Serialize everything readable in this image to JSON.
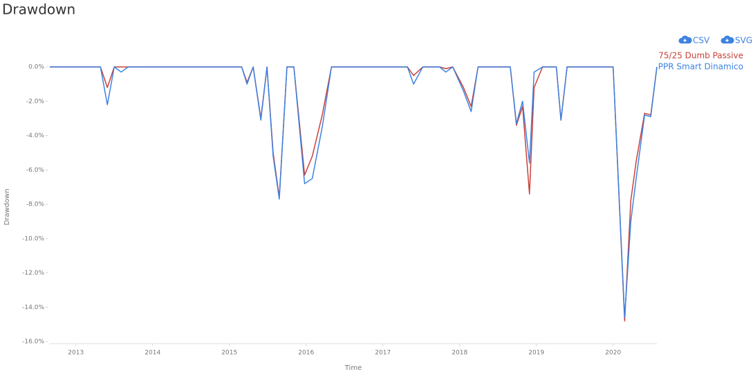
{
  "toolbar": {
    "buttons": [
      "CSV",
      "SVG"
    ]
  },
  "chart_data": {
    "type": "line",
    "title": "Drawdown",
    "x_label": "Time",
    "y_label": "Drawdown",
    "x": [
      2012.66,
      2013.32,
      2013.41,
      2013.5,
      2013.59,
      2013.68,
      2015.16,
      2015.23,
      2015.31,
      2015.41,
      2015.49,
      2015.57,
      2015.65,
      2015.75,
      2015.84,
      2015.98,
      2016.08,
      2016.21,
      2016.33,
      2017.32,
      2017.4,
      2017.52,
      2017.74,
      2017.82,
      2017.91,
      2018.05,
      2018.15,
      2018.24,
      2018.66,
      2018.74,
      2018.82,
      2018.91,
      2018.97,
      2019.08,
      2019.26,
      2019.32,
      2019.4,
      2020.0,
      2020.15,
      2020.23,
      2020.3,
      2020.41,
      2020.49,
      2020.57
    ],
    "series": [
      {
        "name": "75/25 Dumb Passive",
        "color": "#c9403a",
        "values": [
          0,
          0,
          -1.2,
          0,
          0,
          0,
          0,
          -0.9,
          0,
          -3.0,
          0,
          -5.0,
          -7.6,
          0,
          0,
          -6.3,
          -5.2,
          -2.8,
          0,
          0,
          -0.5,
          0,
          0,
          -0.1,
          0,
          -1.2,
          -2.3,
          0,
          0,
          -3.4,
          -2.3,
          -7.4,
          -1.2,
          0,
          0,
          -3.1,
          0,
          0,
          -14.8,
          -7.8,
          -5.5,
          -2.7,
          -2.8,
          0
        ]
      },
      {
        "name": "PPR Smart Dinamico",
        "color": "#3d82e0",
        "values": [
          0,
          0,
          -2.2,
          0,
          -0.3,
          0,
          0,
          -1.0,
          0,
          -3.1,
          0,
          -5.2,
          -7.7,
          0,
          0,
          -6.8,
          -6.5,
          -3.5,
          0,
          0,
          -1.0,
          0,
          0,
          -0.3,
          0,
          -1.4,
          -2.6,
          0,
          0,
          -3.3,
          -2.0,
          -5.6,
          -0.3,
          0,
          0,
          -3.1,
          0,
          0,
          -14.6,
          -9.0,
          -6.5,
          -2.8,
          -2.9,
          0
        ]
      }
    ],
    "xlim": [
      2012.66,
      2020.57
    ],
    "xticks": [
      2013,
      2014,
      2015,
      2016,
      2017,
      2018,
      2019,
      2020
    ],
    "ylim": [
      -16,
      0
    ],
    "yticks": [
      {
        "value": 0,
        "label": "0.0%"
      },
      {
        "value": -2,
        "label": "-2.0%"
      },
      {
        "value": -4,
        "label": "-4.0%"
      },
      {
        "value": -6,
        "label": "-6.0%"
      },
      {
        "value": -8,
        "label": "-8.0%"
      },
      {
        "value": -10,
        "label": "-10.0%"
      },
      {
        "value": -12,
        "label": "-12.0%"
      },
      {
        "value": -14,
        "label": "-14.0%"
      },
      {
        "value": -16,
        "label": "-16.0%"
      }
    ],
    "legend": "top-right"
  }
}
